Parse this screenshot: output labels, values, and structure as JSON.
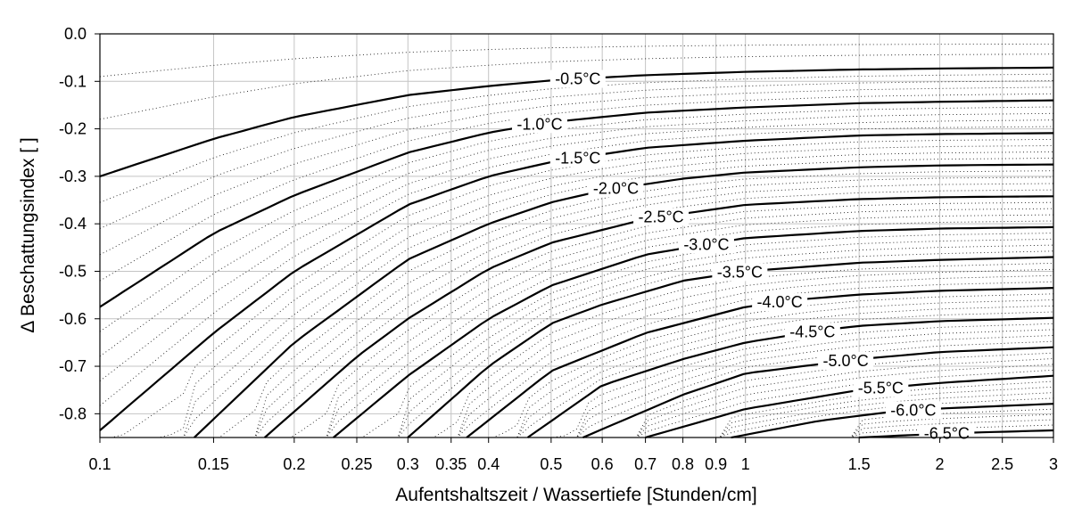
{
  "chart_data": {
    "type": "line",
    "title": "",
    "xlabel": "Aufentshaltszeit / Wassertiefe [Stunden/cm]",
    "ylabel": "Δ Beschattungsindex [ ]",
    "x_scale": "log",
    "xlim": [
      0.1,
      3
    ],
    "ylim": [
      -0.85,
      0.0
    ],
    "grid": true,
    "x_ticks": [
      0.1,
      0.15,
      0.2,
      0.25,
      0.3,
      0.35,
      0.4,
      0.5,
      0.6,
      0.7,
      0.8,
      0.9,
      1,
      1.5,
      2,
      2.5,
      3
    ],
    "x_tick_labels": [
      "0.1",
      "0.15",
      "0.2",
      "0.25",
      "0.3",
      "0.35",
      "0.4",
      "0.5",
      "0.6",
      "0.7",
      "0.8",
      "0.9",
      "1",
      "1.5",
      "2",
      "2.5",
      "3"
    ],
    "y_ticks": [
      0.0,
      -0.1,
      -0.2,
      -0.3,
      -0.4,
      -0.5,
      -0.6,
      -0.7,
      -0.8
    ],
    "y_tick_labels": [
      "0.0",
      "-0.1",
      "-0.2",
      "-0.3",
      "-0.4",
      "-0.5",
      "-0.6",
      "-0.7",
      "-0.8"
    ],
    "series": [
      {
        "name": "-0.5°C",
        "label": "-0.5°C",
        "label_x": 0.55,
        "points": [
          [
            0.1,
            -0.3
          ],
          [
            0.15,
            -0.221
          ],
          [
            0.2,
            -0.175
          ],
          [
            0.3,
            -0.129
          ],
          [
            0.4,
            -0.11
          ],
          [
            0.5,
            -0.098
          ],
          [
            0.7,
            -0.087
          ],
          [
            1,
            -0.08
          ],
          [
            1.5,
            -0.075
          ],
          [
            2,
            -0.073
          ],
          [
            3,
            -0.071
          ]
        ]
      },
      {
        "name": "-1.0°C",
        "label": "-1.0°C",
        "label_x": 0.48,
        "points": [
          [
            0.1,
            -0.575
          ],
          [
            0.15,
            -0.42
          ],
          [
            0.2,
            -0.34
          ],
          [
            0.3,
            -0.25
          ],
          [
            0.4,
            -0.208
          ],
          [
            0.5,
            -0.186
          ],
          [
            0.7,
            -0.166
          ],
          [
            1,
            -0.155
          ],
          [
            1.5,
            -0.146
          ],
          [
            2,
            -0.143
          ],
          [
            3,
            -0.14
          ]
        ]
      },
      {
        "name": "-1.5°C",
        "label": "-1.5°C",
        "label_x": 0.55,
        "points": [
          [
            0.1,
            -0.835
          ],
          [
            0.15,
            -0.63
          ],
          [
            0.2,
            -0.5
          ],
          [
            0.3,
            -0.36
          ],
          [
            0.4,
            -0.3
          ],
          [
            0.5,
            -0.27
          ],
          [
            0.7,
            -0.24
          ],
          [
            1,
            -0.225
          ],
          [
            1.5,
            -0.214
          ],
          [
            2,
            -0.211
          ],
          [
            3,
            -0.209
          ]
        ]
      },
      {
        "name": "-2.0°C",
        "label": "-2.0°C",
        "label_x": 0.63,
        "points": [
          [
            0.14,
            -0.85
          ],
          [
            0.2,
            -0.65
          ],
          [
            0.3,
            -0.475
          ],
          [
            0.4,
            -0.4
          ],
          [
            0.5,
            -0.355
          ],
          [
            0.6,
            -0.33
          ],
          [
            0.8,
            -0.305
          ],
          [
            1,
            -0.292
          ],
          [
            1.5,
            -0.281
          ],
          [
            2,
            -0.277
          ],
          [
            3,
            -0.275
          ]
        ]
      },
      {
        "name": "-2.5°C",
        "label": "-2.5°C",
        "label_x": 0.74,
        "points": [
          [
            0.18,
            -0.85
          ],
          [
            0.25,
            -0.68
          ],
          [
            0.3,
            -0.6
          ],
          [
            0.4,
            -0.495
          ],
          [
            0.5,
            -0.44
          ],
          [
            0.7,
            -0.39
          ],
          [
            1,
            -0.36
          ],
          [
            1.5,
            -0.348
          ],
          [
            2,
            -0.344
          ],
          [
            3,
            -0.342
          ]
        ]
      },
      {
        "name": "-3.0°C",
        "label": "-3.0°C",
        "label_x": 0.87,
        "points": [
          [
            0.23,
            -0.85
          ],
          [
            0.3,
            -0.72
          ],
          [
            0.4,
            -0.6
          ],
          [
            0.5,
            -0.53
          ],
          [
            0.7,
            -0.465
          ],
          [
            0.9,
            -0.44
          ],
          [
            1,
            -0.43
          ],
          [
            1.5,
            -0.415
          ],
          [
            2,
            -0.41
          ],
          [
            3,
            -0.407
          ]
        ]
      },
      {
        "name": "-3.5°C",
        "label": "-3.5°C",
        "label_x": 0.98,
        "points": [
          [
            0.3,
            -0.85
          ],
          [
            0.4,
            -0.7
          ],
          [
            0.5,
            -0.61
          ],
          [
            0.6,
            -0.57
          ],
          [
            0.8,
            -0.52
          ],
          [
            1,
            -0.5
          ],
          [
            1.5,
            -0.482
          ],
          [
            2,
            -0.476
          ],
          [
            3,
            -0.47
          ]
        ]
      },
      {
        "name": "-4.0°C",
        "label": "-4.0°C",
        "label_x": 1.13,
        "points": [
          [
            0.37,
            -0.85
          ],
          [
            0.5,
            -0.71
          ],
          [
            0.7,
            -0.63
          ],
          [
            1,
            -0.575
          ],
          [
            1.2,
            -0.56
          ],
          [
            1.5,
            -0.549
          ],
          [
            2,
            -0.541
          ],
          [
            3,
            -0.535
          ]
        ]
      },
      {
        "name": "-4.5°C",
        "label": "-4.5°C",
        "label_x": 1.27,
        "points": [
          [
            0.46,
            -0.85
          ],
          [
            0.6,
            -0.74
          ],
          [
            0.8,
            -0.685
          ],
          [
            1,
            -0.65
          ],
          [
            1.3,
            -0.625
          ],
          [
            1.5,
            -0.615
          ],
          [
            2,
            -0.605
          ],
          [
            3,
            -0.598
          ]
        ]
      },
      {
        "name": "-5.0°C",
        "label": "-5.0°C",
        "label_x": 1.43,
        "points": [
          [
            0.56,
            -0.85
          ],
          [
            0.8,
            -0.76
          ],
          [
            1,
            -0.715
          ],
          [
            1.5,
            -0.685
          ],
          [
            2,
            -0.67
          ],
          [
            3,
            -0.66
          ]
        ]
      },
      {
        "name": "-5.5°C",
        "label": "-5.5°C",
        "label_x": 1.62,
        "points": [
          [
            0.7,
            -0.85
          ],
          [
            1,
            -0.79
          ],
          [
            1.5,
            -0.75
          ],
          [
            2,
            -0.735
          ],
          [
            3,
            -0.72
          ]
        ]
      },
      {
        "name": "-6.0°C",
        "label": "-6.0°C",
        "label_x": 1.82,
        "points": [
          [
            0.95,
            -0.85
          ],
          [
            1.3,
            -0.815
          ],
          [
            1.7,
            -0.795
          ],
          [
            2,
            -0.789
          ],
          [
            3,
            -0.779
          ]
        ]
      },
      {
        "name": "-6.5°C",
        "label": "-6.5°C",
        "label_x": 2.05,
        "points": [
          [
            1.5,
            -0.85
          ],
          [
            1.8,
            -0.845
          ],
          [
            2.2,
            -0.84
          ],
          [
            3,
            -0.835
          ]
        ]
      }
    ]
  }
}
